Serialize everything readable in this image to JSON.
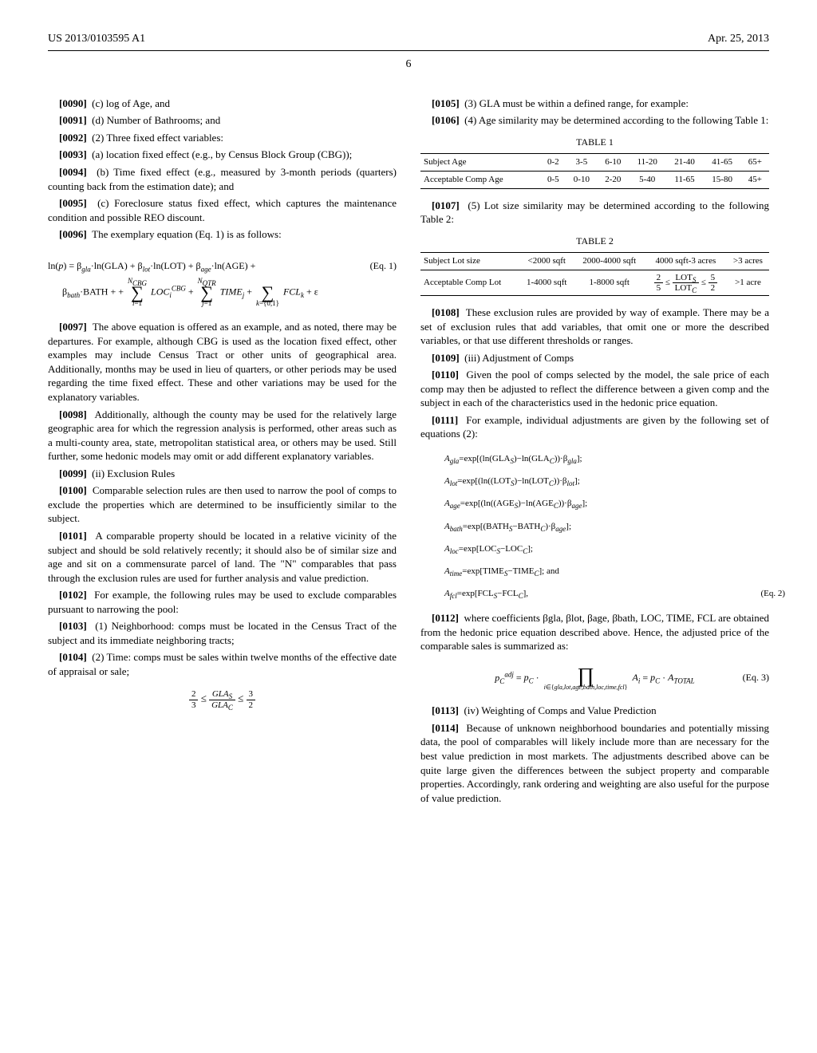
{
  "header": {
    "left": "US 2013/0103595 A1",
    "right": "Apr. 25, 2013"
  },
  "pageNumber": "6",
  "left": {
    "p0090": "(c) log of Age, and",
    "p0091": "(d) Number of Bathrooms; and",
    "p0092": "(2) Three fixed effect variables:",
    "p0093": "(a) location fixed effect (e.g., by Census Block Group (CBG));",
    "p0094": "(b) Time fixed effect (e.g., measured by 3-month periods (quarters) counting back from the estimation date); and",
    "p0095": "(c) Foreclosure status fixed effect, which captures the maintenance condition and possible REO discount.",
    "p0096": "The exemplary equation (Eq. 1) is as follows:",
    "eq1_label": "(Eq. 1)",
    "p0097": "The above equation is offered as an example, and as noted, there may be departures. For example, although CBG is used as the location fixed effect, other examples may include Census Tract or other units of geographical area. Additionally, months may be used in lieu of quarters, or other periods may be used regarding the time fixed effect. These and other variations may be used for the explanatory variables.",
    "p0098": "Additionally, although the county may be used for the relatively large geographic area for which the regression analysis is performed, other areas such as a multi-county area, state, metropolitan statistical area, or others may be used. Still further, some hedonic models may omit or add different explanatory variables.",
    "p0099": "(ii) Exclusion Rules",
    "p0100": "Comparable selection rules are then used to narrow the pool of comps to exclude the properties which are determined to be insufficiently similar to the subject.",
    "p0101": "A comparable property should be located in a relative vicinity of the subject and should be sold relatively recently; it should also be of similar size and age and sit on a commensurate parcel of land. The \"N\" comparables that pass through the exclusion rules are used for further analysis and value prediction.",
    "p0102": "For example, the following rules may be used to exclude comparables pursuant to narrowing the pool:",
    "p0103": "(1) Neighborhood: comps must be located in the Census Tract of the subject and its immediate neighboring tracts;",
    "p0104": "(2) Time: comps must be sales within twelve months of the effective date of appraisal or sale;"
  },
  "right": {
    "p0105": "(3) GLA must be within a defined range, for example:",
    "p0106": "(4) Age similarity may be determined according to the following Table 1:",
    "table1": {
      "caption": "TABLE 1",
      "headers": [
        "Subject Age",
        "0-2",
        "3-5",
        "6-10",
        "11-20",
        "21-40",
        "41-65",
        "65+"
      ],
      "rowLabel": "Acceptable Comp Age",
      "row": [
        "0-5",
        "0-10",
        "2-20",
        "5-40",
        "11-65",
        "15-80",
        "45+"
      ]
    },
    "p0107": "(5) Lot size similarity may be determined according to the following Table 2:",
    "table2": {
      "caption": "TABLE 2",
      "headers": [
        "Subject Lot size",
        "<2000 sqft",
        "2000-4000 sqft",
        "4000 sqft-3 acres",
        ">3 acres"
      ],
      "rowLabel": "Acceptable Comp Lot",
      "row": [
        "1-4000 sqft",
        "1-8000 sqft",
        "",
        ">1 acre"
      ]
    },
    "p0108": "These exclusion rules are provided by way of example. There may be a set of exclusion rules that add variables, that omit one or more the described variables, or that use different thresholds or ranges.",
    "p0109": "(iii) Adjustment of Comps",
    "p0110": "Given the pool of comps selected by the model, the sale price of each comp may then be adjusted to reflect the difference between a given comp and the subject in each of the characteristics used in the hedonic price equation.",
    "p0111": "For example, individual adjustments are given by the following set of equations (2):",
    "eq2": {
      "l1": "Agla=exp[(ln(GLAS)−ln(GLAC))·βgla];",
      "l2": "Alot=exp[(ln((LOTS)−ln(LOTC))·βlot];",
      "l3": "Aage=exp[(ln((AGES)−ln(AGEC))·βage];",
      "l4": "Abath=exp[(BATHS−BATHC)·βage];",
      "l5": "Aloc=exp[LOCS−LOCC];",
      "l6": "Atime=exp[TIMES−TIMEC]; and",
      "l7pre": "Afcl=exp[FCLS−FCLC],",
      "l7label": "(Eq. 2)"
    },
    "p0112": "where coefficients βgla, βlot, βage, βbath, LOC, TIME, FCL are obtained from the hedonic price equation described above. Hence, the adjusted price of the comparable sales is summarized as:",
    "eq3_label": "(Eq. 3)",
    "p0113": "(iv) Weighting of Comps and Value Prediction",
    "p0114": "Because of unknown neighborhood boundaries and potentially missing data, the pool of comparables will likely include more than are necessary for the best value prediction in most markets. The adjustments described above can be quite large given the differences between the subject property and comparable properties. Accordingly, rank ordering and weighting are also useful for the purpose of value prediction."
  }
}
